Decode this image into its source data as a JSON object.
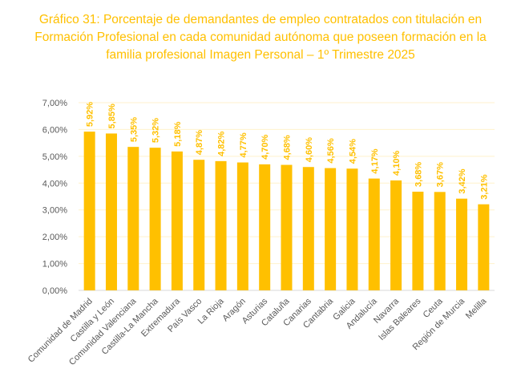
{
  "chart_data": {
    "type": "bar",
    "title": "Gráfico 31: Porcentaje de demandantes de empleo contratados con titulación en Formación Profesional en cada comunidad autónoma que poseen formación en la familia profesional Imagen Personal – 1º Trimestre 2025",
    "title_lines": [
      "Gráfico 31: Porcentaje de demandantes de empleo contratados con titulación en",
      "Formación Profesional en cada comunidad autónoma que poseen formación en la",
      "familia profesional Imagen Personal – 1º Trimestre 2025"
    ],
    "categories": [
      "Comunidad de Madrid",
      "Castilla y León",
      "Comunidad Valenciana",
      "Castilla-La Mancha",
      "Extremadura",
      "País Vasco",
      "La Rioja",
      "Aragón",
      "Asturias",
      "Cataluña",
      "Canarias",
      "Cantabria",
      "Galicia",
      "Andalucía",
      "Navarra",
      "Islas Baleares",
      "Ceuta",
      "Región de Murcia",
      "Melilla"
    ],
    "values": [
      5.92,
      5.85,
      5.35,
      5.32,
      5.18,
      4.87,
      4.82,
      4.77,
      4.7,
      4.68,
      4.6,
      4.56,
      4.54,
      4.17,
      4.1,
      3.68,
      3.67,
      3.42,
      3.21
    ],
    "data_labels": [
      "5,92%",
      "5,85%",
      "5,35%",
      "5,32%",
      "5,18%",
      "4,87%",
      "4,82%",
      "4,77%",
      "4,70%",
      "4,68%",
      "4,60%",
      "4,56%",
      "4,54%",
      "4,17%",
      "4,10%",
      "3,68%",
      "3,67%",
      "3,42%",
      "3,21%"
    ],
    "yticks": [
      "0,00%",
      "1,00%",
      "2,00%",
      "3,00%",
      "4,00%",
      "5,00%",
      "6,00%",
      "7,00%"
    ],
    "ylim": [
      0,
      7
    ],
    "xlabel": "",
    "ylabel": "",
    "grid": true,
    "legend": "none",
    "bar_color": "#FFC000",
    "grid_color": "#FFF2CC"
  }
}
